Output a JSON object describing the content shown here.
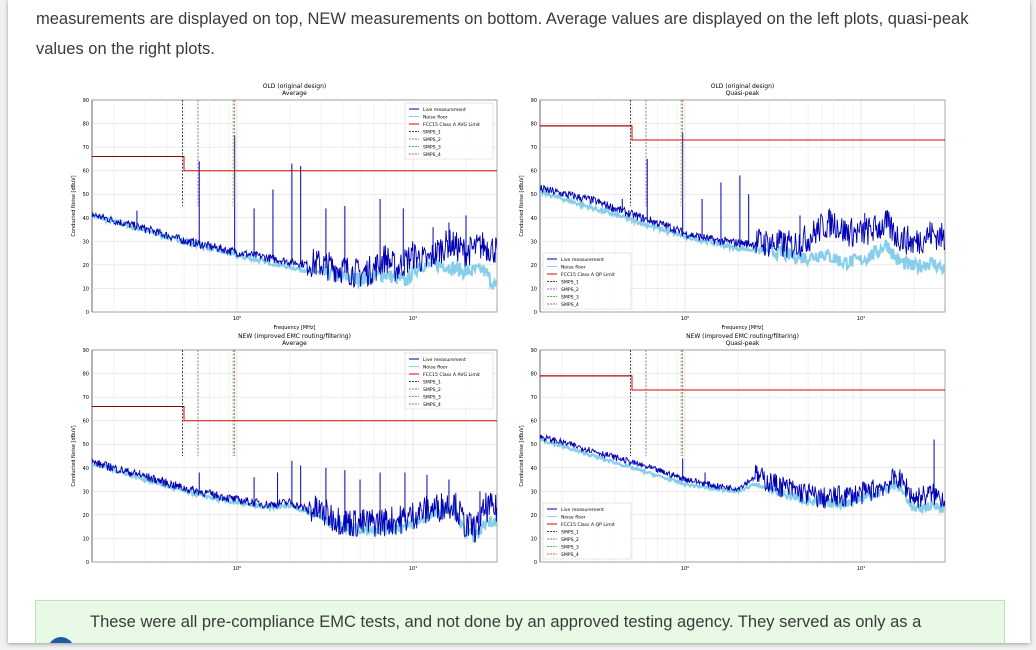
{
  "intro": {
    "text": "measurements are displayed on top, NEW measurements on bottom. Average values are displayed on the left plots, quasi-peak values on the right plots."
  },
  "note": {
    "text": "These were all pre-compliance EMC tests, and not done by an approved testing agency. They served as only as a",
    "icon": "info-icon"
  },
  "colors": {
    "live": "#0000b4",
    "noise": "#87ceeb",
    "limit": "#e60000",
    "limit_dark": "#8b0000",
    "smps1": "#000000",
    "smps2": "#6a3fb5",
    "smps3": "#2ca02c",
    "smps4": "#d62728"
  },
  "chart_data": [
    {
      "type": "line",
      "title": "OLD (original design)",
      "subtitle": "Average",
      "xlabel": "Frequency [MHz]",
      "ylabel": "Conducted Noise [dBuV]",
      "xscale": "log",
      "xlim": [
        0.15,
        30
      ],
      "ylim": [
        0,
        90
      ],
      "yticks": [
        0,
        10,
        20,
        30,
        40,
        50,
        60,
        70,
        80,
        90
      ],
      "xticks": [
        {
          "v": 1,
          "label": "10⁰"
        },
        {
          "v": 10,
          "label": "10¹"
        }
      ],
      "grid": true,
      "legend_position": "top-right",
      "legend": [
        "Live measurement",
        "Noise floor",
        "FCC15 Class A AVG Limit",
        "SMPS_1",
        "SMPS_2",
        "SMPS_3",
        "SMPS_4"
      ],
      "limit": [
        {
          "x": 0.15,
          "y": 66
        },
        {
          "x": 0.5,
          "y": 66
        },
        {
          "x": 0.5,
          "y": 60
        },
        {
          "x": 30,
          "y": 60
        }
      ],
      "smps": [
        {
          "name": "SMPS_1",
          "x": 0.49
        },
        {
          "name": "SMPS_2",
          "x": 0.6
        },
        {
          "name": "SMPS_3",
          "x": 0.95
        },
        {
          "name": "SMPS_4",
          "x": 0.97
        }
      ],
      "live": {
        "base": [
          [
            0.15,
            41
          ],
          [
            0.3,
            35
          ],
          [
            0.5,
            30
          ],
          [
            1,
            25
          ],
          [
            2,
            21
          ],
          [
            3,
            19
          ],
          [
            4,
            17
          ],
          [
            5,
            15
          ],
          [
            6,
            17
          ],
          [
            7,
            22
          ],
          [
            8,
            17
          ],
          [
            9,
            20
          ],
          [
            10,
            23
          ],
          [
            12,
            20
          ],
          [
            14,
            25
          ],
          [
            16,
            28
          ],
          [
            18,
            26
          ],
          [
            20,
            24
          ],
          [
            25,
            27
          ],
          [
            30,
            25
          ]
        ],
        "noise_amp": 4,
        "spikes": [
          [
            0.27,
            43
          ],
          [
            0.61,
            64
          ],
          [
            0.97,
            75
          ],
          [
            1.25,
            44
          ],
          [
            1.6,
            52
          ],
          [
            2.05,
            63
          ],
          [
            2.3,
            62
          ],
          [
            3.2,
            44
          ],
          [
            4.1,
            45
          ],
          [
            6.5,
            48
          ],
          [
            8.8,
            44
          ],
          [
            13,
            36
          ],
          [
            16,
            38
          ],
          [
            20,
            41
          ]
        ]
      },
      "noise": {
        "base": [
          [
            0.15,
            41
          ],
          [
            0.5,
            30
          ],
          [
            1,
            24
          ],
          [
            2,
            19
          ],
          [
            4,
            15
          ],
          [
            5,
            14
          ],
          [
            7,
            16
          ],
          [
            9,
            13
          ],
          [
            11,
            20
          ],
          [
            15,
            20
          ],
          [
            20,
            17
          ],
          [
            25,
            18
          ],
          [
            30,
            10
          ]
        ],
        "noise_amp": 3
      }
    },
    {
      "type": "line",
      "title": "OLD (original design)",
      "subtitle": "Quasi-peak",
      "xlabel": "Frequency [MHz]",
      "ylabel": "Conducted Noise [dBuV]",
      "xscale": "log",
      "xlim": [
        0.15,
        30
      ],
      "ylim": [
        0,
        90
      ],
      "yticks": [
        0,
        10,
        20,
        30,
        40,
        50,
        60,
        70,
        80,
        90
      ],
      "xticks": [
        {
          "v": 1,
          "label": "10⁰"
        },
        {
          "v": 10,
          "label": "10¹"
        }
      ],
      "grid": true,
      "legend_position": "bottom-left",
      "legend": [
        "Live measurement",
        "Noise floor",
        "FCC15 Class A QP Limit",
        "SMPS_1",
        "SMPS_2",
        "SMPS_3",
        "SMPS_4"
      ],
      "limit": [
        {
          "x": 0.15,
          "y": 79
        },
        {
          "x": 0.5,
          "y": 79
        },
        {
          "x": 0.5,
          "y": 73
        },
        {
          "x": 30,
          "y": 73
        }
      ],
      "smps": [
        {
          "name": "SMPS_1",
          "x": 0.49
        },
        {
          "name": "SMPS_2",
          "x": 0.6
        },
        {
          "name": "SMPS_3",
          "x": 0.95
        },
        {
          "name": "SMPS_4",
          "x": 0.97
        }
      ],
      "live": {
        "base": [
          [
            0.15,
            52
          ],
          [
            0.3,
            47
          ],
          [
            0.5,
            41
          ],
          [
            0.8,
            36
          ],
          [
            1,
            33
          ],
          [
            1.5,
            30
          ],
          [
            2,
            29
          ],
          [
            3,
            28
          ],
          [
            4,
            27
          ],
          [
            5,
            30
          ],
          [
            6,
            35
          ],
          [
            7,
            37
          ],
          [
            8,
            33
          ],
          [
            10,
            32
          ],
          [
            12,
            34
          ],
          [
            14,
            36
          ],
          [
            16,
            31
          ],
          [
            20,
            28
          ],
          [
            25,
            32
          ],
          [
            30,
            30
          ]
        ],
        "noise_amp": 4,
        "spikes": [
          [
            0.44,
            48
          ],
          [
            0.61,
            65
          ],
          [
            0.97,
            76
          ],
          [
            1.25,
            48
          ],
          [
            1.6,
            55
          ],
          [
            2.05,
            58
          ],
          [
            2.3,
            50
          ],
          [
            4.5,
            41
          ],
          [
            10.5,
            42
          ],
          [
            14,
            43
          ]
        ]
      },
      "noise": {
        "base": [
          [
            0.15,
            51
          ],
          [
            0.5,
            39
          ],
          [
            1,
            32
          ],
          [
            2,
            27
          ],
          [
            3,
            26
          ],
          [
            4,
            24
          ],
          [
            5,
            23
          ],
          [
            6,
            25
          ],
          [
            8,
            21
          ],
          [
            10,
            22
          ],
          [
            12,
            25
          ],
          [
            14,
            29
          ],
          [
            16,
            22
          ],
          [
            20,
            19
          ],
          [
            25,
            21
          ],
          [
            30,
            18
          ]
        ],
        "noise_amp": 3
      }
    },
    {
      "type": "line",
      "title": "NEW (improved EMC routing/filtering)",
      "subtitle": "Average",
      "xlabel": "Frequency [MHz]",
      "ylabel": "Conducted Noise [dBuV]",
      "xscale": "log",
      "xlim": [
        0.15,
        30
      ],
      "ylim": [
        0,
        90
      ],
      "yticks": [
        0,
        10,
        20,
        30,
        40,
        50,
        60,
        70,
        80,
        90
      ],
      "xticks": [
        {
          "v": 1,
          "label": "10⁰"
        },
        {
          "v": 10,
          "label": "10¹"
        }
      ],
      "grid": true,
      "legend_position": "top-right",
      "legend": [
        "Live measurement",
        "Noise floor",
        "FCC15 Class A AVG Limit",
        "SMPS_1",
        "SMPS_2",
        "SMPS_3",
        "SMPS_4"
      ],
      "limit": [
        {
          "x": 0.15,
          "y": 66
        },
        {
          "x": 0.5,
          "y": 66
        },
        {
          "x": 0.5,
          "y": 60
        },
        {
          "x": 30,
          "y": 60
        }
      ],
      "smps": [
        {
          "name": "SMPS_1",
          "x": 0.49
        },
        {
          "name": "SMPS_2",
          "x": 0.6
        },
        {
          "name": "SMPS_3",
          "x": 0.95
        },
        {
          "name": "SMPS_4",
          "x": 0.97
        }
      ],
      "live": {
        "base": [
          [
            0.15,
            42
          ],
          [
            0.3,
            36
          ],
          [
            0.5,
            31
          ],
          [
            1,
            26
          ],
          [
            1.5,
            24
          ],
          [
            2,
            25
          ],
          [
            2.5,
            22
          ],
          [
            3,
            20
          ],
          [
            4,
            16
          ],
          [
            5,
            15
          ],
          [
            7,
            16
          ],
          [
            9,
            17
          ],
          [
            11,
            20
          ],
          [
            14,
            22
          ],
          [
            17,
            24
          ],
          [
            20,
            14
          ],
          [
            23,
            13
          ],
          [
            26,
            22
          ],
          [
            30,
            21
          ]
        ],
        "noise_amp": 4,
        "spikes": [
          [
            0.19,
            42
          ],
          [
            0.28,
            39
          ],
          [
            0.61,
            38
          ],
          [
            1.25,
            36
          ],
          [
            1.7,
            38
          ],
          [
            2.05,
            43
          ],
          [
            2.3,
            41
          ],
          [
            3.2,
            40
          ],
          [
            4.1,
            39
          ],
          [
            5,
            35
          ],
          [
            6.5,
            38
          ],
          [
            9,
            38
          ],
          [
            12,
            37
          ],
          [
            16,
            35
          ],
          [
            24,
            30
          ]
        ]
      },
      "noise": {
        "base": [
          [
            0.15,
            42
          ],
          [
            0.5,
            30
          ],
          [
            1,
            25
          ],
          [
            1.5,
            23
          ],
          [
            2,
            24
          ],
          [
            3,
            19
          ],
          [
            4,
            15
          ],
          [
            5,
            14
          ],
          [
            7,
            14
          ],
          [
            9,
            15
          ],
          [
            11,
            18
          ],
          [
            14,
            21
          ],
          [
            17,
            23
          ],
          [
            20,
            12
          ],
          [
            23,
            11
          ],
          [
            26,
            17
          ],
          [
            30,
            18
          ]
        ],
        "noise_amp": 2.5
      }
    },
    {
      "type": "line",
      "title": "NEW (improved EMC routing/filtering)",
      "subtitle": "Quasi-peak",
      "xlabel": "Frequency [MHz]",
      "ylabel": "Conducted Noise [dBuV]",
      "xscale": "log",
      "xlim": [
        0.15,
        30
      ],
      "ylim": [
        0,
        90
      ],
      "yticks": [
        0,
        10,
        20,
        30,
        40,
        50,
        60,
        70,
        80,
        90
      ],
      "xticks": [
        {
          "v": 1,
          "label": "10⁰"
        },
        {
          "v": 10,
          "label": "10¹"
        }
      ],
      "grid": true,
      "legend_position": "bottom-left",
      "legend": [
        "Live measurement",
        "Noise floor",
        "FCC15 Class A QP Limit",
        "SMPS_1",
        "SMPS_2",
        "SMPS_3",
        "SMPS_4"
      ],
      "limit": [
        {
          "x": 0.15,
          "y": 79
        },
        {
          "x": 0.5,
          "y": 79
        },
        {
          "x": 0.5,
          "y": 73
        },
        {
          "x": 30,
          "y": 73
        }
      ],
      "smps": [
        {
          "name": "SMPS_1",
          "x": 0.49
        },
        {
          "name": "SMPS_2",
          "x": 0.6
        },
        {
          "name": "SMPS_3",
          "x": 0.95
        },
        {
          "name": "SMPS_4",
          "x": 0.97
        }
      ],
      "live": {
        "base": [
          [
            0.15,
            53
          ],
          [
            0.3,
            47
          ],
          [
            0.5,
            42
          ],
          [
            1,
            35
          ],
          [
            1.5,
            32
          ],
          [
            2,
            31
          ],
          [
            2.5,
            36
          ],
          [
            3,
            33
          ],
          [
            4,
            30
          ],
          [
            5,
            28
          ],
          [
            6,
            26
          ],
          [
            8,
            27
          ],
          [
            10,
            28
          ],
          [
            12,
            30
          ],
          [
            14,
            32
          ],
          [
            16,
            35
          ],
          [
            18,
            31
          ],
          [
            20,
            26
          ],
          [
            25,
            28
          ],
          [
            30,
            26
          ]
        ],
        "noise_amp": 3,
        "spikes": [
          [
            0.61,
            40
          ],
          [
            0.97,
            44
          ],
          [
            1.3,
            38
          ],
          [
            16.5,
            38
          ],
          [
            26,
            52
          ]
        ]
      },
      "noise": {
        "base": [
          [
            0.15,
            52
          ],
          [
            0.5,
            40
          ],
          [
            1,
            33
          ],
          [
            1.5,
            31
          ],
          [
            2,
            30
          ],
          [
            2.5,
            33
          ],
          [
            3,
            31
          ],
          [
            4,
            28
          ],
          [
            5,
            26
          ],
          [
            6,
            25
          ],
          [
            8,
            25
          ],
          [
            10,
            27
          ],
          [
            12,
            29
          ],
          [
            14,
            31
          ],
          [
            16,
            33
          ],
          [
            18,
            28
          ],
          [
            20,
            22
          ],
          [
            25,
            24
          ],
          [
            30,
            23
          ]
        ],
        "noise_amp": 2
      }
    }
  ]
}
